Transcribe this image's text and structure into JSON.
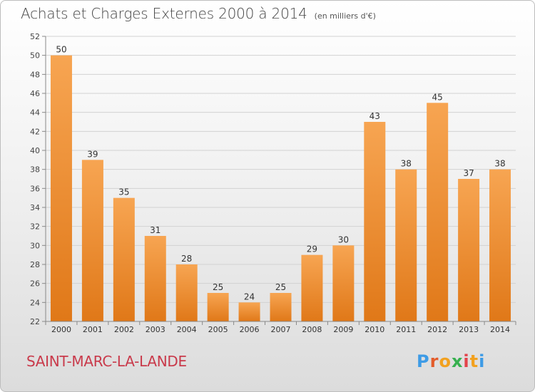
{
  "header": {
    "title": "Achats et Charges Externes 2000 à 2014",
    "unit": "(en milliers d'€)"
  },
  "footer": {
    "town": "SAINT-MARC-LA-LANDE",
    "logo_letters": [
      "P",
      "r",
      "o",
      "x",
      "i",
      "t",
      "i"
    ]
  },
  "colors": {
    "bar_top": "#f7a552",
    "bar_bottom": "#e07818",
    "town": "#c93a4b",
    "logo": [
      "#3d9be6",
      "#e35c2b",
      "#f2a11f",
      "#36b04f",
      "#e3424a",
      "#f2a11f",
      "#3d9be6"
    ]
  },
  "chart_data": {
    "type": "bar",
    "title": "Achats et Charges Externes 2000 à 2014",
    "subtitle": "(en milliers d'€)",
    "categories": [
      "2000",
      "2001",
      "2002",
      "2003",
      "2004",
      "2005",
      "2006",
      "2007",
      "2008",
      "2009",
      "2010",
      "2011",
      "2012",
      "2013",
      "2014"
    ],
    "values": [
      50,
      39,
      35,
      31,
      28,
      25,
      24,
      25,
      29,
      30,
      43,
      38,
      45,
      37,
      38
    ],
    "ylim": [
      22,
      52
    ],
    "yticks": [
      22,
      24,
      26,
      28,
      30,
      32,
      34,
      36,
      38,
      40,
      42,
      44,
      46,
      48,
      50,
      52
    ],
    "grid": true,
    "data_labels": true
  }
}
